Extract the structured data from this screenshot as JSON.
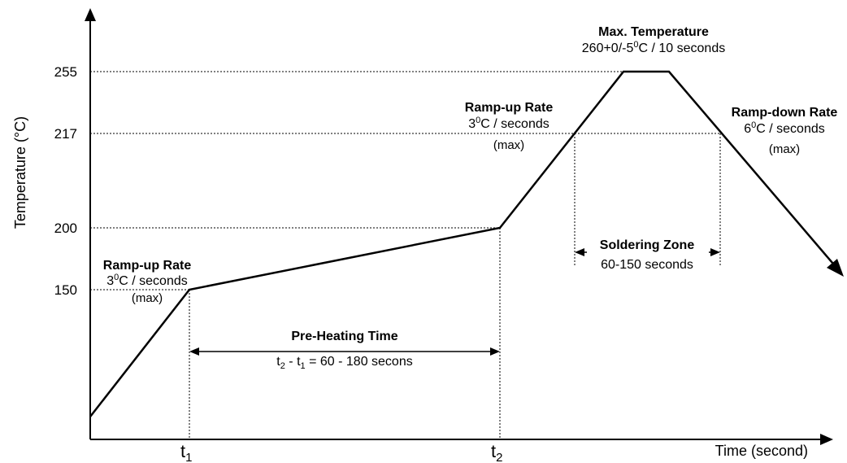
{
  "y_axis": {
    "label": "Temperature (°C)",
    "ticks": [
      "255",
      "217",
      "200",
      "150"
    ]
  },
  "x_axis": {
    "label": "Time (second)",
    "markers": [
      {
        "base": "t",
        "sub": "1"
      },
      {
        "base": "t",
        "sub": "2"
      }
    ]
  },
  "annotations": {
    "ramp_up_1": {
      "title": "Ramp-up Rate",
      "rate_num": "3",
      "rate_sup": "0",
      "rate_rest": "C / seconds",
      "note": "(max)"
    },
    "ramp_up_2": {
      "title": "Ramp-up Rate",
      "rate_num": "3",
      "rate_sup": "0",
      "rate_rest": "C / seconds",
      "note": "(max)"
    },
    "max_temp": {
      "title": "Max. Temperature",
      "detail_pre": "260+0/-5",
      "detail_sup": "0",
      "detail_post": "C / 10 seconds"
    },
    "ramp_down": {
      "title": "Ramp-down Rate",
      "rate_num": "6",
      "rate_sup": "0",
      "rate_rest": "C / seconds",
      "note": "(max)"
    },
    "soldering_zone": {
      "title": "Soldering Zone",
      "detail": "60-150 seconds"
    },
    "preheat": {
      "title": "Pre-Heating Time",
      "t2": "t",
      "t2_sub": "2",
      "dash": " - ",
      "t1": "t",
      "t1_sub": "1",
      "detail": " = 60 - 180 secons"
    }
  }
}
